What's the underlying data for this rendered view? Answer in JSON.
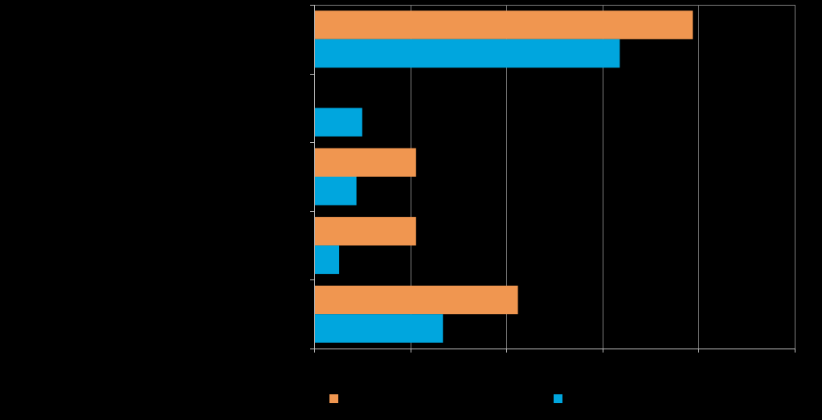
{
  "chart_data": {
    "type": "bar",
    "orientation": "horizontal",
    "categories": [
      "",
      "",
      "",
      "",
      ""
    ],
    "series": [
      {
        "values": [
          39.4,
          0,
          10.6,
          10.6,
          21.2
        ]
      },
      {
        "values": [
          31.8,
          5.0,
          4.4,
          2.6,
          13.4
        ]
      }
    ],
    "xlim": [
      0,
      50
    ],
    "x_grid_step": 10,
    "grid": true,
    "legend_position": "bottom",
    "colors": {
      "background": "#000000",
      "series_1": "#F09650",
      "series_2": "#00A6DE",
      "gridline": "#7F7F7F",
      "axis": "#BFBFBF"
    }
  }
}
